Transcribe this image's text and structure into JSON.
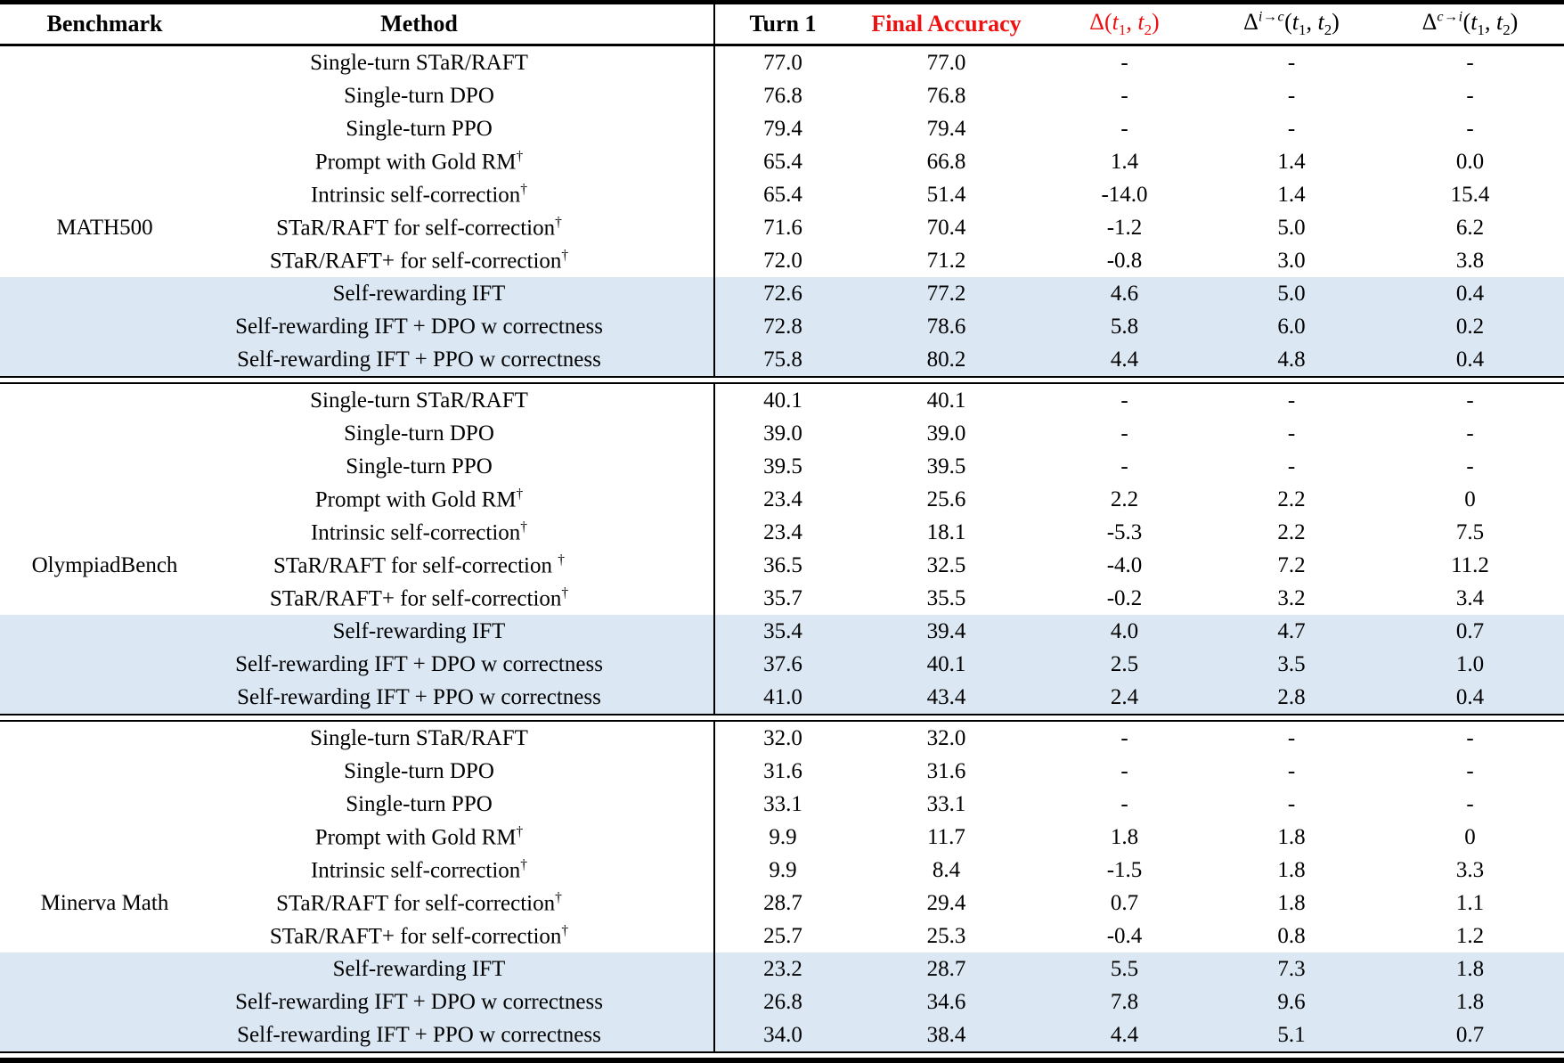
{
  "colors": {
    "header_red": "#ee1111",
    "row_highlight": "#dbe8f4",
    "rule": "#000000",
    "text": "#000000"
  },
  "columns": [
    {
      "key": "benchmark",
      "label": "Benchmark",
      "bold": true
    },
    {
      "key": "method",
      "label": "Method",
      "bold": true
    },
    {
      "key": "turn1",
      "label": "Turn 1",
      "bold": true
    },
    {
      "key": "final",
      "label": "Final Accuracy",
      "bold": true,
      "color": "#ee1111"
    },
    {
      "key": "delta",
      "math": true,
      "base": "Δ",
      "sup": "",
      "args": "(t1, t2)",
      "color": "#ee1111"
    },
    {
      "key": "delta_ic",
      "math": true,
      "base": "Δ",
      "sup": "i→c",
      "args": "(t1, t2)"
    },
    {
      "key": "delta_ci",
      "math": true,
      "base": "Δ",
      "sup": "c→i",
      "args": "(t1, t2)"
    }
  ],
  "sections": [
    {
      "benchmark": "MATH500",
      "rows": [
        {
          "method": "Single-turn STaR/RAFT",
          "turn1": "77.0",
          "final": "77.0",
          "delta": "-",
          "delta_ic": "-",
          "delta_ci": "-",
          "highlight": false
        },
        {
          "method": "Single-turn DPO",
          "turn1": "76.8",
          "final": "76.8",
          "delta": "-",
          "delta_ic": "-",
          "delta_ci": "-",
          "highlight": false
        },
        {
          "method": "Single-turn PPO",
          "turn1": "79.4",
          "final": "79.4",
          "delta": "-",
          "delta_ic": "-",
          "delta_ci": "-",
          "highlight": false
        },
        {
          "method": "Prompt with Gold RM†",
          "turn1": "65.4",
          "final": "66.8",
          "delta": "1.4",
          "delta_ic": "1.4",
          "delta_ci": "0.0",
          "highlight": false
        },
        {
          "method": "Intrinsic self-correction†",
          "turn1": "65.4",
          "final": "51.4",
          "delta": "-14.0",
          "delta_ic": "1.4",
          "delta_ci": "15.4",
          "highlight": false
        },
        {
          "method": "STaR/RAFT for self-correction†",
          "turn1": "71.6",
          "final": "70.4",
          "delta": "-1.2",
          "delta_ic": "5.0",
          "delta_ci": "6.2",
          "highlight": false
        },
        {
          "method": "STaR/RAFT+ for self-correction†",
          "turn1": "72.0",
          "final": "71.2",
          "delta": "-0.8",
          "delta_ic": "3.0",
          "delta_ci": "3.8",
          "highlight": false
        },
        {
          "method": "Self-rewarding IFT",
          "turn1": "72.6",
          "final": "77.2",
          "delta": "4.6",
          "delta_ic": "5.0",
          "delta_ci": "0.4",
          "highlight": true
        },
        {
          "method": "Self-rewarding IFT + DPO w correctness",
          "turn1": "72.8",
          "final": "78.6",
          "delta": "5.8",
          "delta_ic": "6.0",
          "delta_ci": "0.2",
          "highlight": true
        },
        {
          "method": "Self-rewarding IFT + PPO w correctness",
          "turn1": "75.8",
          "final": "80.2",
          "delta": "4.4",
          "delta_ic": "4.8",
          "delta_ci": "0.4",
          "highlight": true
        }
      ]
    },
    {
      "benchmark": "OlympiadBench",
      "rows": [
        {
          "method": "Single-turn STaR/RAFT",
          "turn1": "40.1",
          "final": "40.1",
          "delta": "-",
          "delta_ic": "-",
          "delta_ci": "-",
          "highlight": false
        },
        {
          "method": "Single-turn DPO",
          "turn1": "39.0",
          "final": "39.0",
          "delta": "-",
          "delta_ic": "-",
          "delta_ci": "-",
          "highlight": false
        },
        {
          "method": "Single-turn PPO",
          "turn1": "39.5",
          "final": "39.5",
          "delta": "-",
          "delta_ic": "-",
          "delta_ci": "-",
          "highlight": false
        },
        {
          "method": "Prompt with Gold RM†",
          "turn1": "23.4",
          "final": "25.6",
          "delta": "2.2",
          "delta_ic": "2.2",
          "delta_ci": "0",
          "highlight": false
        },
        {
          "method": "Intrinsic self-correction†",
          "turn1": "23.4",
          "final": "18.1",
          "delta": "-5.3",
          "delta_ic": "2.2",
          "delta_ci": "7.5",
          "highlight": false
        },
        {
          "method": "STaR/RAFT for self-correction †",
          "turn1": "36.5",
          "final": "32.5",
          "delta": "-4.0",
          "delta_ic": "7.2",
          "delta_ci": "11.2",
          "highlight": false
        },
        {
          "method": "STaR/RAFT+ for self-correction†",
          "turn1": "35.7",
          "final": "35.5",
          "delta": "-0.2",
          "delta_ic": "3.2",
          "delta_ci": "3.4",
          "highlight": false
        },
        {
          "method": "Self-rewarding IFT",
          "turn1": "35.4",
          "final": "39.4",
          "delta": "4.0",
          "delta_ic": "4.7",
          "delta_ci": "0.7",
          "highlight": true
        },
        {
          "method": "Self-rewarding IFT + DPO w correctness",
          "turn1": "37.6",
          "final": "40.1",
          "delta": "2.5",
          "delta_ic": "3.5",
          "delta_ci": "1.0",
          "highlight": true
        },
        {
          "method": "Self-rewarding IFT + PPO w correctness",
          "turn1": "41.0",
          "final": "43.4",
          "delta": "2.4",
          "delta_ic": "2.8",
          "delta_ci": "0.4",
          "highlight": true
        }
      ]
    },
    {
      "benchmark": "Minerva Math",
      "rows": [
        {
          "method": "Single-turn STaR/RAFT",
          "turn1": "32.0",
          "final": "32.0",
          "delta": "-",
          "delta_ic": "-",
          "delta_ci": "-",
          "highlight": false
        },
        {
          "method": "Single-turn DPO",
          "turn1": "31.6",
          "final": "31.6",
          "delta": "-",
          "delta_ic": "-",
          "delta_ci": "-",
          "highlight": false
        },
        {
          "method": "Single-turn PPO",
          "turn1": "33.1",
          "final": "33.1",
          "delta": "-",
          "delta_ic": "-",
          "delta_ci": "-",
          "highlight": false
        },
        {
          "method": "Prompt with Gold RM†",
          "turn1": "9.9",
          "final": "11.7",
          "delta": "1.8",
          "delta_ic": "1.8",
          "delta_ci": "0",
          "highlight": false
        },
        {
          "method": "Intrinsic self-correction†",
          "turn1": "9.9",
          "final": "8.4",
          "delta": "-1.5",
          "delta_ic": "1.8",
          "delta_ci": "3.3",
          "highlight": false
        },
        {
          "method": "STaR/RAFT for self-correction†",
          "turn1": "28.7",
          "final": "29.4",
          "delta": "0.7",
          "delta_ic": "1.8",
          "delta_ci": "1.1",
          "highlight": false
        },
        {
          "method": "STaR/RAFT+ for self-correction†",
          "turn1": "25.7",
          "final": "25.3",
          "delta": "-0.4",
          "delta_ic": "0.8",
          "delta_ci": "1.2",
          "highlight": false
        },
        {
          "method": "Self-rewarding IFT",
          "turn1": "23.2",
          "final": "28.7",
          "delta": "5.5",
          "delta_ic": "7.3",
          "delta_ci": "1.8",
          "highlight": true
        },
        {
          "method": "Self-rewarding IFT + DPO w correctness",
          "turn1": "26.8",
          "final": "34.6",
          "delta": "7.8",
          "delta_ic": "9.6",
          "delta_ci": "1.8",
          "highlight": true
        },
        {
          "method": "Self-rewarding IFT + PPO w correctness",
          "turn1": "34.0",
          "final": "38.4",
          "delta": "4.4",
          "delta_ic": "5.1",
          "delta_ci": "0.7",
          "highlight": true
        }
      ]
    }
  ],
  "chart_data": {
    "type": "table",
    "title": "Self-correction benchmark results",
    "column_keys": [
      "benchmark",
      "method",
      "turn1",
      "final",
      "delta",
      "delta_ic",
      "delta_ci"
    ],
    "column_labels": [
      "Benchmark",
      "Method",
      "Turn 1",
      "Final Accuracy",
      "Δ(t1, t2)",
      "Δ^{i→c}(t1, t2)",
      "Δ^{c→i}(t1, t2)"
    ]
  }
}
